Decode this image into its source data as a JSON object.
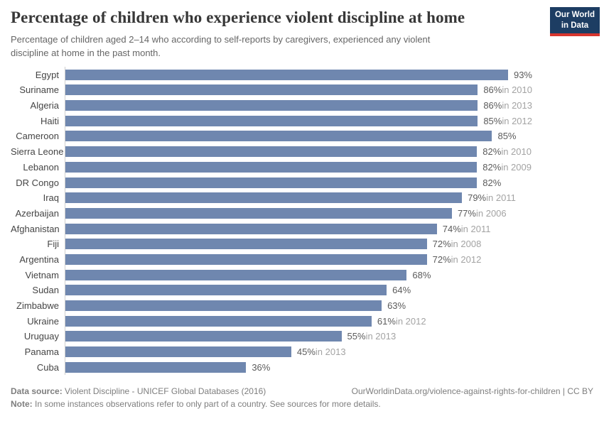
{
  "header": {
    "title": "Percentage of children who experience violent discipline at home",
    "subtitle": "Percentage of children aged 2–14 who according to self-reports by caregivers, experienced any violent discipline at home in the past month.",
    "logo": {
      "line1": "Our World",
      "line2": "in Data"
    }
  },
  "colors": {
    "bar": "#6f87af",
    "logo_bg": "#1d3d63",
    "logo_stripe": "#d7352e",
    "title_text": "#373737",
    "subtitle_text": "#666666",
    "country_text": "#454545",
    "value_text": "#5b5b5b",
    "year_text": "#a3a3a3",
    "axis_line": "#cfcfcf",
    "footer_text": "#7e7e7e"
  },
  "chart_data": {
    "type": "bar",
    "orientation": "horizontal",
    "title": "Percentage of children who experience violent discipline at home",
    "xlabel": "",
    "ylabel": "",
    "unit": "%",
    "xlim": [
      0,
      93
    ],
    "grid": false,
    "legend": "none",
    "year_prefix": "in ",
    "rows": [
      {
        "country": "Egypt",
        "value": 93,
        "year": null
      },
      {
        "country": "Suriname",
        "value": 86,
        "year": 2010
      },
      {
        "country": "Algeria",
        "value": 86,
        "year": 2013
      },
      {
        "country": "Haiti",
        "value": 85,
        "year": 2012
      },
      {
        "country": "Cameroon",
        "value": 85,
        "year": null
      },
      {
        "country": "Sierra Leone",
        "value": 82,
        "year": 2010
      },
      {
        "country": "Lebanon",
        "value": 82,
        "year": 2009
      },
      {
        "country": "DR Congo",
        "value": 82,
        "year": null
      },
      {
        "country": "Iraq",
        "value": 79,
        "year": 2011
      },
      {
        "country": "Azerbaijan",
        "value": 77,
        "year": 2006
      },
      {
        "country": "Afghanistan",
        "value": 74,
        "year": 2011
      },
      {
        "country": "Fiji",
        "value": 72,
        "year": 2008
      },
      {
        "country": "Argentina",
        "value": 72,
        "year": 2012
      },
      {
        "country": "Vietnam",
        "value": 68,
        "year": null
      },
      {
        "country": "Sudan",
        "value": 64,
        "year": null
      },
      {
        "country": "Zimbabwe",
        "value": 63,
        "year": null
      },
      {
        "country": "Ukraine",
        "value": 61,
        "year": 2012
      },
      {
        "country": "Uruguay",
        "value": 55,
        "year": 2013
      },
      {
        "country": "Panama",
        "value": 45,
        "year": 2013
      },
      {
        "country": "Cuba",
        "value": 36,
        "year": null
      }
    ]
  },
  "footer": {
    "source_label": "Data source:",
    "source_text": "Violent Discipline - UNICEF Global Databases (2016)",
    "link_text": "OurWorldinData.org/violence-against-rights-for-children | CC BY",
    "note_label": "Note:",
    "note_text": "In some instances observations refer to only part of a country. See sources for more details."
  }
}
